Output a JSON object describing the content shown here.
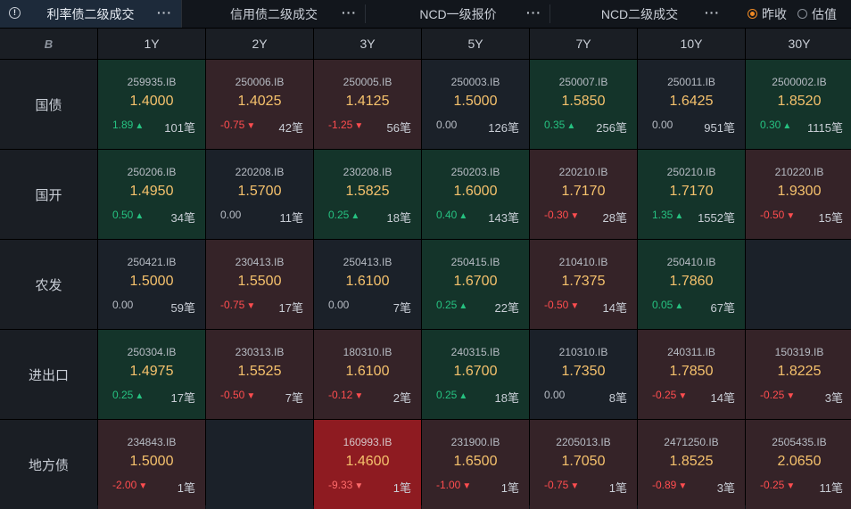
{
  "tabs": [
    {
      "label": "利率债二级成交",
      "active": true
    },
    {
      "label": "信用债二级成交",
      "active": false
    },
    {
      "label": "NCD一级报价",
      "active": false
    },
    {
      "label": "NCD二级成交",
      "active": false
    }
  ],
  "more_label": "···",
  "info_glyph": "!",
  "radio": {
    "options": [
      {
        "label": "昨收",
        "selected": true
      },
      {
        "label": "估值",
        "selected": false
      }
    ]
  },
  "corner_logo": "B",
  "tenors": [
    "1Y",
    "2Y",
    "3Y",
    "5Y",
    "7Y",
    "10Y",
    "30Y"
  ],
  "colors": {
    "up_bg": "#14342a",
    "down_bg": "#352328",
    "strong_down_bg": "#8e1b21",
    "neutral_bg": "#1b2129",
    "price": "#f5c16c",
    "up_text": "#26c281",
    "down_text": "#ff4d4f",
    "accent": "#f08a24"
  },
  "rows": [
    {
      "name": "国债",
      "cells": [
        {
          "code": "259935.IB",
          "price": "1.4000",
          "change": "1.89",
          "dir": "up",
          "count": "101笔",
          "bg": "up"
        },
        {
          "code": "250006.IB",
          "price": "1.4025",
          "change": "-0.75",
          "dir": "down",
          "count": "42笔",
          "bg": "down"
        },
        {
          "code": "250005.IB",
          "price": "1.4125",
          "change": "-1.25",
          "dir": "down",
          "count": "56笔",
          "bg": "down"
        },
        {
          "code": "250003.IB",
          "price": "1.5000",
          "change": "0.00",
          "dir": "flat",
          "count": "126笔",
          "bg": "neutral"
        },
        {
          "code": "250007.IB",
          "price": "1.5850",
          "change": "0.35",
          "dir": "up",
          "count": "256笔",
          "bg": "up"
        },
        {
          "code": "250011.IB",
          "price": "1.6425",
          "change": "0.00",
          "dir": "flat",
          "count": "951笔",
          "bg": "neutral"
        },
        {
          "code": "2500002.IB",
          "price": "1.8520",
          "change": "0.30",
          "dir": "up",
          "count": "1115笔",
          "bg": "up"
        }
      ]
    },
    {
      "name": "国开",
      "cells": [
        {
          "code": "250206.IB",
          "price": "1.4950",
          "change": "0.50",
          "dir": "up",
          "count": "34笔",
          "bg": "up"
        },
        {
          "code": "220208.IB",
          "price": "1.5700",
          "change": "0.00",
          "dir": "flat",
          "count": "11笔",
          "bg": "neutral"
        },
        {
          "code": "230208.IB",
          "price": "1.5825",
          "change": "0.25",
          "dir": "up",
          "count": "18笔",
          "bg": "up"
        },
        {
          "code": "250203.IB",
          "price": "1.6000",
          "change": "0.40",
          "dir": "up",
          "count": "143笔",
          "bg": "up"
        },
        {
          "code": "220210.IB",
          "price": "1.7170",
          "change": "-0.30",
          "dir": "down",
          "count": "28笔",
          "bg": "down"
        },
        {
          "code": "250210.IB",
          "price": "1.7170",
          "change": "1.35",
          "dir": "up",
          "count": "1552笔",
          "bg": "up"
        },
        {
          "code": "210220.IB",
          "price": "1.9300",
          "change": "-0.50",
          "dir": "down",
          "count": "15笔",
          "bg": "down"
        }
      ]
    },
    {
      "name": "农发",
      "cells": [
        {
          "code": "250421.IB",
          "price": "1.5000",
          "change": "0.00",
          "dir": "flat",
          "count": "59笔",
          "bg": "neutral"
        },
        {
          "code": "230413.IB",
          "price": "1.5500",
          "change": "-0.75",
          "dir": "down",
          "count": "17笔",
          "bg": "down"
        },
        {
          "code": "250413.IB",
          "price": "1.6100",
          "change": "0.00",
          "dir": "flat",
          "count": "7笔",
          "bg": "neutral"
        },
        {
          "code": "250415.IB",
          "price": "1.6700",
          "change": "0.25",
          "dir": "up",
          "count": "22笔",
          "bg": "up"
        },
        {
          "code": "210410.IB",
          "price": "1.7375",
          "change": "-0.50",
          "dir": "down",
          "count": "14笔",
          "bg": "down"
        },
        {
          "code": "250410.IB",
          "price": "1.7860",
          "change": "0.05",
          "dir": "up",
          "count": "67笔",
          "bg": "up"
        },
        null
      ]
    },
    {
      "name": "进出口",
      "cells": [
        {
          "code": "250304.IB",
          "price": "1.4975",
          "change": "0.25",
          "dir": "up",
          "count": "17笔",
          "bg": "up"
        },
        {
          "code": "230313.IB",
          "price": "1.5525",
          "change": "-0.50",
          "dir": "down",
          "count": "7笔",
          "bg": "down"
        },
        {
          "code": "180310.IB",
          "price": "1.6100",
          "change": "-0.12",
          "dir": "down",
          "count": "2笔",
          "bg": "down"
        },
        {
          "code": "240315.IB",
          "price": "1.6700",
          "change": "0.25",
          "dir": "up",
          "count": "18笔",
          "bg": "up"
        },
        {
          "code": "210310.IB",
          "price": "1.7350",
          "change": "0.00",
          "dir": "flat",
          "count": "8笔",
          "bg": "neutral"
        },
        {
          "code": "240311.IB",
          "price": "1.7850",
          "change": "-0.25",
          "dir": "down",
          "count": "14笔",
          "bg": "down"
        },
        {
          "code": "150319.IB",
          "price": "1.8225",
          "change": "-0.25",
          "dir": "down",
          "count": "3笔",
          "bg": "down"
        }
      ]
    },
    {
      "name": "地方债",
      "cells": [
        {
          "code": "234843.IB",
          "price": "1.5000",
          "change": "-2.00",
          "dir": "down",
          "count": "1笔",
          "bg": "down"
        },
        null,
        {
          "code": "160993.IB",
          "price": "1.4600",
          "change": "-9.33",
          "dir": "down",
          "count": "1笔",
          "bg": "strong-down"
        },
        {
          "code": "231900.IB",
          "price": "1.6500",
          "change": "-1.00",
          "dir": "down",
          "count": "1笔",
          "bg": "down"
        },
        {
          "code": "2205013.IB",
          "price": "1.7050",
          "change": "-0.75",
          "dir": "down",
          "count": "1笔",
          "bg": "down"
        },
        {
          "code": "2471250.IB",
          "price": "1.8525",
          "change": "-0.89",
          "dir": "down",
          "count": "3笔",
          "bg": "down"
        },
        {
          "code": "2505435.IB",
          "price": "2.0650",
          "change": "-0.25",
          "dir": "down",
          "count": "11笔",
          "bg": "down"
        }
      ]
    }
  ]
}
